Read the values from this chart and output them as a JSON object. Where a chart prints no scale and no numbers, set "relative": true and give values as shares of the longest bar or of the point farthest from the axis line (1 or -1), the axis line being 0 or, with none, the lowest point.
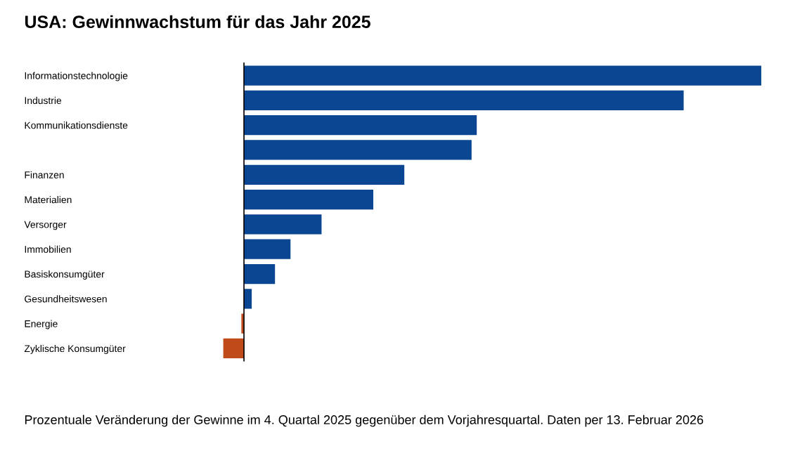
{
  "chart_data": {
    "type": "bar",
    "orientation": "horizontal",
    "relative": true,
    "title": "USA: Gewinnwachstum für das Jahr 2025",
    "categories": [
      "Informationstechnologie",
      "Industrie",
      "Kommunikationsdienste",
      null,
      "Finanzen",
      "Materialien",
      "Versorger",
      "Immobilien",
      "Basiskonsumgüter",
      "Gesundheitswesen",
      "Energie",
      "Zyklische Konsumgüter"
    ],
    "values": [
      1,
      0.85,
      0.45,
      0.44,
      0.31,
      0.25,
      0.15,
      0.09,
      0.06,
      0.015,
      -0.005,
      -0.04
    ],
    "colors": [
      "#0a4691",
      "#0a4691",
      "#0a4691",
      "#0a4691",
      "#0a4691",
      "#0a4691",
      "#0a4691",
      "#0a4691",
      "#0a4691",
      "#0a4691",
      "#be4b19",
      "#be4b19"
    ],
    "annotations": [
      "Prozentuale Veränderung der Gewinne im 4. Quartal 2025 gegenüber dem Vorjahresquartal. Daten per 13. Februar 2026"
    ]
  }
}
